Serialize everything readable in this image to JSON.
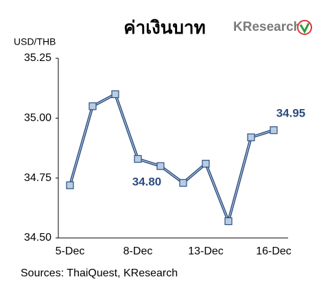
{
  "chart_data": {
    "type": "line",
    "title": "ค่าเงินบาท",
    "logo": "KResearch",
    "y_label": "USD/THB",
    "source": "Sources: ThaiQuest, KResearch",
    "categories": [
      "5-Dec",
      null,
      null,
      "8-Dec",
      null,
      null,
      "13-Dec",
      null,
      null,
      "16-Dec"
    ],
    "series": [
      {
        "color": "#2b4c7e",
        "marker_color": "#b8cce4",
        "values": [
          34.72,
          35.05,
          35.1,
          34.83,
          34.8,
          34.73,
          34.81,
          34.57,
          34.92,
          34.95
        ],
        "value_labels": [
          null,
          null,
          null,
          null,
          "34.80",
          null,
          null,
          null,
          null,
          "34.95"
        ]
      }
    ],
    "ylim": [
      34.5,
      35.25
    ],
    "yticks": [
      {
        "value": 34.5,
        "label": "34.50"
      },
      34.75,
      {
        "value": 35,
        "label": "35.00"
      },
      35.25
    ],
    "grid": false
  }
}
